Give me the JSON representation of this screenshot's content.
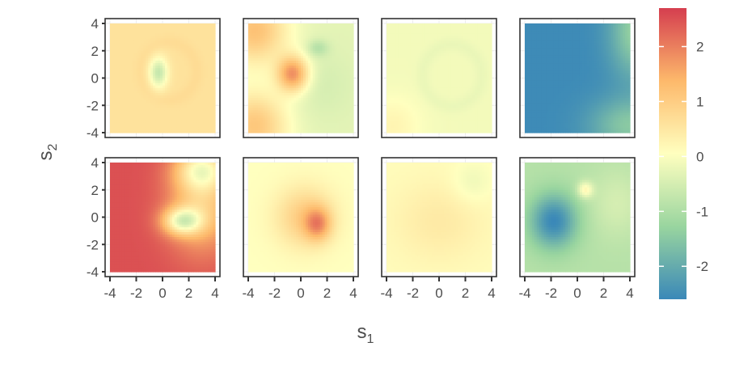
{
  "chart_data": {
    "type": "heatmap",
    "layout": "2 rows x 4 columns of panels",
    "xlabel": "s",
    "xlabel_sub": "1",
    "ylabel": "s",
    "ylabel_sub": "2",
    "xlim": [
      -4,
      4
    ],
    "ylim": [
      -4,
      4
    ],
    "x_ticks": [
      -4,
      -2,
      0,
      2,
      4
    ],
    "y_ticks": [
      -4,
      -2,
      0,
      2,
      4
    ],
    "tick_labels": [
      "-4",
      "-2",
      "0",
      "2",
      "4"
    ],
    "colorbar": {
      "range": [
        -2.6,
        2.7
      ],
      "ticks": [
        -2,
        -1,
        0,
        1,
        2
      ],
      "tick_labels": [
        "-2",
        "-1",
        "0",
        "1",
        "2"
      ],
      "palette": [
        "#3a88b8",
        "#99d59f",
        "#ffffbf",
        "#fdb96b",
        "#d53e4f"
      ]
    },
    "grid": true,
    "legend": "right",
    "panels": [
      {
        "row": 1,
        "col": 1,
        "background": 0.6,
        "features": [
          {
            "cx": 0.5,
            "cy": 0.5,
            "rx": 2.8,
            "ry": 2.8,
            "value": 0.8,
            "ring": true
          },
          {
            "cx": -0.3,
            "cy": 0.4,
            "rx": 0.7,
            "ry": 1.1,
            "value": -0.7
          }
        ]
      },
      {
        "row": 1,
        "col": 2,
        "background": -0.3,
        "features": [
          {
            "cx": -3.5,
            "cy": 3.5,
            "rx": 2.5,
            "ry": 2.5,
            "value": 1.2
          },
          {
            "cx": -3.5,
            "cy": -3.5,
            "rx": 2.5,
            "ry": 2.5,
            "value": 1.1
          },
          {
            "cx": -0.6,
            "cy": 0.3,
            "rx": 1.2,
            "ry": 1.3,
            "value": 1.8
          },
          {
            "cx": 1.3,
            "cy": 2.2,
            "rx": 0.8,
            "ry": 0.6,
            "value": -0.9
          },
          {
            "cx": 1.5,
            "cy": -0.5,
            "rx": 2.5,
            "ry": 2.5,
            "value": -0.5
          }
        ]
      },
      {
        "row": 1,
        "col": 3,
        "background": -0.1,
        "features": [
          {
            "cx": 1.0,
            "cy": 0.2,
            "rx": 3.0,
            "ry": 3.0,
            "value": -0.3,
            "ring": true
          },
          {
            "cx": -3.5,
            "cy": -3.5,
            "rx": 2.0,
            "ry": 2.0,
            "value": 0.25
          }
        ]
      },
      {
        "row": 1,
        "col": 4,
        "background": -2.55,
        "features": [
          {
            "cx": 4.5,
            "cy": 3.5,
            "rx": 2.0,
            "ry": 3.5,
            "value": -1.3
          },
          {
            "cx": 4.0,
            "cy": -3.5,
            "rx": 3.0,
            "ry": 2.0,
            "value": -1.5
          }
        ]
      },
      {
        "row": 2,
        "col": 1,
        "background": 2.5,
        "features": [
          {
            "cx": 3.0,
            "cy": 1.0,
            "rx": 2.5,
            "ry": 3.5,
            "value": 1.0
          },
          {
            "cx": 1.5,
            "cy": -0.3,
            "rx": 1.5,
            "ry": 1.0,
            "value": 0.3
          },
          {
            "cx": 3.0,
            "cy": 3.5,
            "rx": 2.0,
            "ry": 1.5,
            "value": 0.7
          }
        ]
      },
      {
        "row": 2,
        "col": 2,
        "background": 0.05,
        "features": [
          {
            "cx": 0.3,
            "cy": 0.0,
            "rx": 2.2,
            "ry": 2.2,
            "value": 1.0
          },
          {
            "cx": 1.3,
            "cy": -0.5,
            "rx": 1.0,
            "ry": 1.2,
            "value": 1.4
          }
        ]
      },
      {
        "row": 2,
        "col": 3,
        "background": 0.1,
        "features": [
          {
            "cx": 0.0,
            "cy": -0.3,
            "rx": 3.5,
            "ry": 3.0,
            "value": 0.45
          },
          {
            "cx": 2.5,
            "cy": 2.5,
            "rx": 1.5,
            "ry": 1.5,
            "value": -0.2
          }
        ]
      },
      {
        "row": 2,
        "col": 4,
        "background": -0.9,
        "features": [
          {
            "cx": -1.8,
            "cy": -0.3,
            "rx": 1.8,
            "ry": 2.0,
            "value": -2.6
          },
          {
            "cx": 0.6,
            "cy": 2.0,
            "rx": 0.6,
            "ry": 0.6,
            "value": 0.2
          },
          {
            "cx": 3.0,
            "cy": 1.0,
            "rx": 2.0,
            "ry": 2.5,
            "value": -0.5
          }
        ]
      }
    ]
  }
}
